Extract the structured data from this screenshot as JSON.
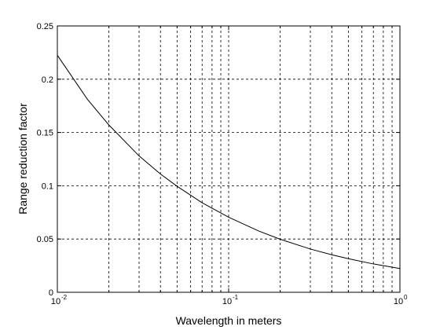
{
  "chart_data": {
    "type": "line",
    "title": "",
    "xlabel": "Wavelength in meters",
    "ylabel": "Range reduction factor",
    "xscale": "log",
    "xlim": [
      0.01,
      1
    ],
    "ylim": [
      0,
      0.25
    ],
    "grid": true,
    "x_ticks": [
      {
        "base": "10",
        "exp": "-2"
      },
      {
        "base": "10",
        "exp": "-1"
      },
      {
        "base": "10",
        "exp": "0"
      }
    ],
    "y_ticks": [
      "0",
      "0.05",
      "0.1",
      "0.15",
      "0.2",
      "0.25"
    ],
    "series": [
      {
        "x": [
          0.01,
          0.015,
          0.02,
          0.03,
          0.04,
          0.05,
          0.07,
          0.1,
          0.15,
          0.2,
          0.3,
          0.4,
          0.5,
          0.7,
          1.0
        ],
        "y": [
          0.2225,
          0.181,
          0.157,
          0.128,
          0.111,
          0.0995,
          0.084,
          0.0705,
          0.0575,
          0.0498,
          0.0406,
          0.0352,
          0.0315,
          0.0266,
          0.0223
        ]
      }
    ]
  }
}
